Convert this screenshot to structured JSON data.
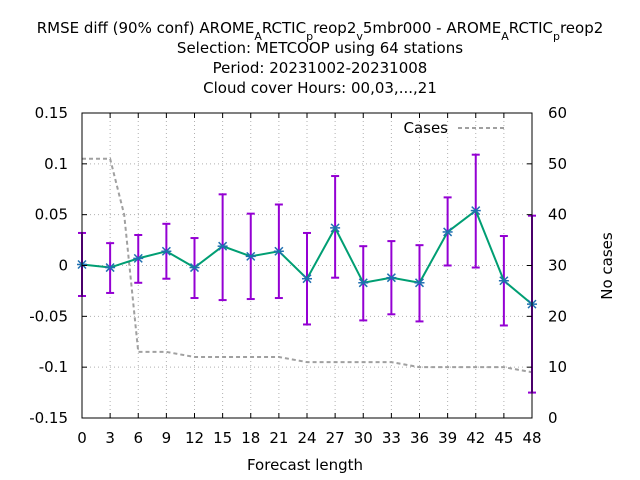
{
  "chart_data": {
    "type": "line",
    "title_lines": [
      "RMSE diff (90% conf) AROME_ARCTIC_preop2_v5mbr000 - AROME_ARCTIC_preop2",
      "Selection: METCOOP using    64 stations",
      "Period: 20231002-20231008",
      "Cloud cover   Hours:  00,03,...,21"
    ],
    "xlabel": "Forecast length",
    "ylabel": "",
    "y2label": "No cases",
    "x": [
      0,
      3,
      6,
      9,
      12,
      15,
      18,
      21,
      24,
      27,
      30,
      33,
      36,
      39,
      42,
      45,
      48
    ],
    "xlim": [
      0,
      48
    ],
    "ylim": [
      -0.15,
      0.15
    ],
    "y2lim": [
      0,
      60
    ],
    "x_ticks": [
      "0",
      "3",
      "6",
      "9",
      "12",
      "15",
      "18",
      "21",
      "24",
      "27",
      "30",
      "33",
      "36",
      "39",
      "42",
      "45",
      "48"
    ],
    "y_ticks": [
      "-0.15",
      "-0.1",
      "-0.05",
      "0",
      "0.05",
      "0.1",
      "0.15"
    ],
    "y2_ticks": [
      "0",
      "10",
      "20",
      "30",
      "40",
      "50",
      "60"
    ],
    "grid": true,
    "series": [
      {
        "axis": "y",
        "values": [
          0.001,
          -0.002,
          0.007,
          0.014,
          -0.002,
          0.019,
          0.009,
          0.014,
          -0.013,
          0.037,
          -0.017,
          -0.012,
          -0.017,
          0.033,
          0.054,
          -0.015,
          -0.038
        ],
        "err_low": [
          -0.03,
          -0.027,
          -0.017,
          -0.013,
          -0.032,
          -0.034,
          -0.033,
          -0.032,
          -0.058,
          -0.012,
          -0.054,
          -0.048,
          -0.055,
          0.0,
          -0.002,
          -0.059,
          -0.125
        ],
        "err_high": [
          0.032,
          0.022,
          0.03,
          0.041,
          0.027,
          0.07,
          0.051,
          0.06,
          0.032,
          0.088,
          0.019,
          0.024,
          0.02,
          0.067,
          0.109,
          0.029,
          0.049
        ],
        "line_color": "#009e73",
        "error_color": "#9400d3"
      },
      {
        "name": "Cases",
        "axis": "y2",
        "x": [
          0,
          3,
          4.5,
          6,
          9,
          12,
          15,
          18,
          21,
          24,
          27,
          30,
          33,
          36,
          39,
          42,
          45,
          48
        ],
        "values": [
          51,
          51,
          40,
          13,
          13,
          12,
          12,
          12,
          12,
          11,
          11,
          11,
          11,
          10,
          10,
          10,
          10,
          9
        ],
        "line_color": "#a0a0a0",
        "dashed": true
      }
    ],
    "legend_placement": "top-right"
  }
}
